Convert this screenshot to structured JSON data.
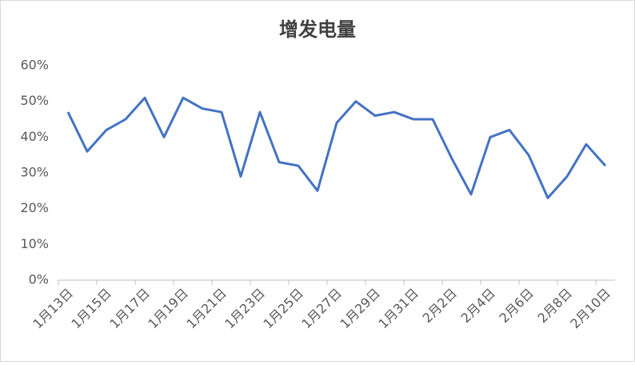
{
  "chart_data": {
    "type": "line",
    "title": "增发电量",
    "categories": [
      "1月13日",
      null,
      "1月15日",
      null,
      "1月17日",
      null,
      "1月19日",
      null,
      "1月21日",
      null,
      "1月23日",
      null,
      "1月25日",
      null,
      "1月27日",
      null,
      "1月29日",
      null,
      "1月31日",
      null,
      "2月2日",
      null,
      "2月4日",
      null,
      "2月6日",
      null,
      "2月8日",
      null,
      "2月10日"
    ],
    "values": [
      47,
      36,
      42,
      45,
      51,
      40,
      51,
      48,
      47,
      29,
      47,
      33,
      32,
      25,
      44,
      50,
      46,
      47,
      45,
      45,
      34,
      24,
      40,
      42,
      35,
      23,
      29,
      38,
      32
    ],
    "color": "#4472c4",
    "ylim": [
      0,
      60
    ],
    "yticks": [
      {
        "value": 0,
        "label": "0%"
      },
      {
        "value": 10,
        "label": "10%"
      },
      {
        "value": 20,
        "label": "20%"
      },
      {
        "value": 30,
        "label": "30%"
      },
      {
        "value": 40,
        "label": "40%"
      },
      {
        "value": 50,
        "label": "50%"
      },
      {
        "value": 60,
        "label": "60%"
      }
    ],
    "grid": false
  }
}
